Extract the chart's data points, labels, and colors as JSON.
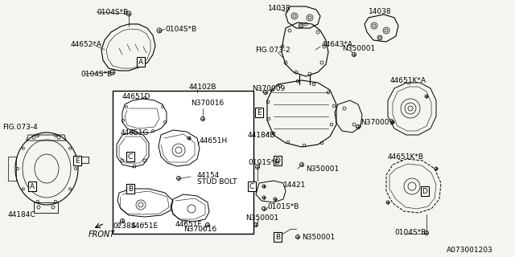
{
  "background_color": "#f5f5f0",
  "diagram_number": "A073001203",
  "font_size": 6.5,
  "labels": {
    "0104S_B": "0104S*B",
    "44652_A": "44652*A",
    "FIG073_4": "FIG.073-4",
    "44184C": "44184C",
    "44102B": "44102B",
    "44651D": "44651D",
    "44651G": "44651G",
    "44651H": "44651H",
    "N370016": "N370016",
    "44154": "44154",
    "STUD_BOLT": "STUD BOLT",
    "44651F": "44651F",
    "44651E": "44651E",
    "0238S": "0238S",
    "FRONT": "FRONT",
    "14038": "14038",
    "FIG073_2": "FIG.073-2",
    "44643_A": "44643*A",
    "N350001": "N350001",
    "N370009": "N370009",
    "44184B": "44184B",
    "0101S_B": "0101S*B",
    "14421": "14421",
    "44651K_A": "44651K*A",
    "44651K_B": "44651K*B"
  }
}
